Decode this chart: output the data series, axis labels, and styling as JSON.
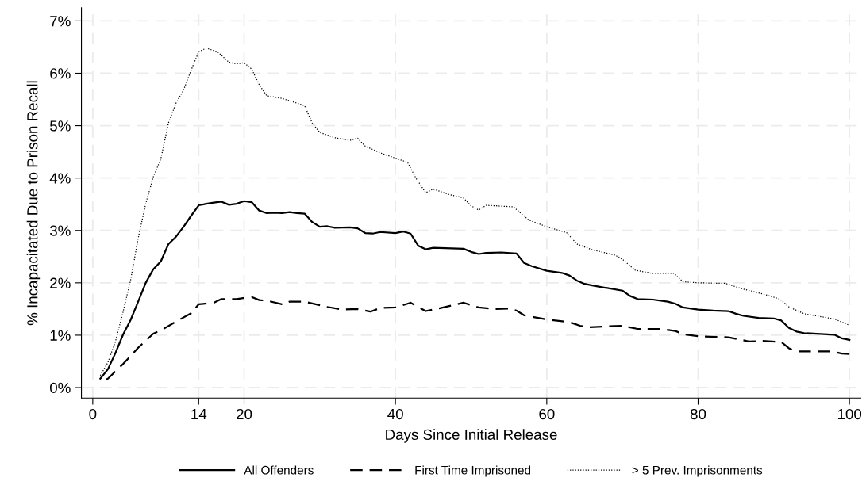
{
  "chart_data": {
    "type": "line",
    "xlabel": "Days Since Initial Release",
    "ylabel": "% Incapacitated Due to Prison Recall",
    "xlim": [
      -1.5,
      101.5
    ],
    "xticks": [
      0,
      14,
      20,
      40,
      60,
      80,
      100
    ],
    "ylim": [
      -0.2,
      7.25
    ],
    "yticks": [
      {
        "value": 0,
        "label": "0%"
      },
      {
        "value": 1,
        "label": "1%"
      },
      {
        "value": 2,
        "label": "2%"
      },
      {
        "value": 3,
        "label": "3%"
      },
      {
        "value": 4,
        "label": "4%"
      },
      {
        "value": 5,
        "label": "5%"
      },
      {
        "value": 6,
        "label": "6%"
      },
      {
        "value": 7,
        "label": "7%"
      }
    ],
    "grid": true,
    "legend": "bottom",
    "marker": "none",
    "series": [
      {
        "name": "All Offenders",
        "color": "#000000",
        "line_style": "solid",
        "x": [
          1,
          2,
          3,
          4,
          5,
          6,
          7,
          8,
          9,
          10,
          11,
          12,
          13,
          14,
          15,
          16,
          17,
          18,
          19,
          20,
          21,
          22,
          23,
          24,
          25,
          26,
          27,
          28,
          29,
          30,
          31,
          32,
          34,
          35,
          36,
          37,
          38,
          40,
          41,
          42,
          43,
          44,
          45,
          49,
          50,
          51,
          52,
          54,
          56,
          57,
          58,
          60,
          62,
          63,
          64,
          65,
          66,
          68,
          70,
          71,
          72,
          74,
          76,
          77,
          78,
          80,
          82,
          84,
          85,
          86,
          88,
          90,
          91,
          92,
          93,
          94,
          98,
          99,
          100
        ],
        "values": [
          0.17,
          0.35,
          0.66,
          1.01,
          1.29,
          1.64,
          2.0,
          2.26,
          2.41,
          2.74,
          2.88,
          3.07,
          3.28,
          3.48,
          3.51,
          3.53,
          3.55,
          3.49,
          3.51,
          3.56,
          3.54,
          3.38,
          3.33,
          3.34,
          3.33,
          3.35,
          3.33,
          3.32,
          3.16,
          3.07,
          3.08,
          3.05,
          3.06,
          3.04,
          2.95,
          2.94,
          2.97,
          2.95,
          2.98,
          2.94,
          2.71,
          2.64,
          2.67,
          2.65,
          2.59,
          2.55,
          2.57,
          2.58,
          2.56,
          2.38,
          2.32,
          2.23,
          2.19,
          2.14,
          2.04,
          1.98,
          1.95,
          1.9,
          1.85,
          1.75,
          1.69,
          1.68,
          1.64,
          1.6,
          1.53,
          1.49,
          1.47,
          1.46,
          1.41,
          1.37,
          1.33,
          1.32,
          1.28,
          1.14,
          1.07,
          1.04,
          1.01,
          0.94,
          0.91
        ]
      },
      {
        "name": "First Time Imprisoned",
        "color": "#000000",
        "line_style": "dashed",
        "x": [
          1,
          2,
          4,
          6,
          8,
          9,
          11,
          13,
          14,
          16,
          17,
          19,
          21,
          22,
          23,
          25,
          26,
          28,
          31,
          33,
          35,
          36.7,
          38,
          40,
          42,
          44,
          46,
          49,
          51,
          53,
          55,
          56,
          57,
          60,
          63,
          64.4,
          65.6,
          68,
          70,
          72,
          75,
          77,
          78,
          80,
          84,
          86.7,
          88.5,
          91,
          92,
          93,
          97.6,
          99,
          100
        ],
        "values": [
          0.1,
          0.17,
          0.45,
          0.76,
          1.03,
          1.09,
          1.26,
          1.42,
          1.59,
          1.62,
          1.69,
          1.69,
          1.73,
          1.67,
          1.66,
          1.59,
          1.64,
          1.64,
          1.54,
          1.49,
          1.5,
          1.45,
          1.52,
          1.53,
          1.62,
          1.46,
          1.52,
          1.62,
          1.53,
          1.5,
          1.51,
          1.47,
          1.38,
          1.3,
          1.25,
          1.18,
          1.15,
          1.17,
          1.18,
          1.12,
          1.12,
          1.08,
          1.02,
          0.98,
          0.96,
          0.88,
          0.89,
          0.87,
          0.75,
          0.69,
          0.69,
          0.65,
          0.64
        ]
      },
      {
        "name": "> 5 Prev. Imprisonments",
        "color": "#000000",
        "line_style": "dotted",
        "x": [
          1,
          2,
          3,
          4,
          5,
          6,
          7,
          8,
          9,
          10,
          11,
          12,
          13,
          14,
          15,
          16.5,
          18,
          19,
          20,
          21,
          22,
          23,
          25,
          27,
          28,
          29,
          30,
          32,
          34,
          35,
          36,
          38,
          40,
          41.6,
          42.7,
          44,
          45,
          47,
          49,
          50,
          51,
          52,
          55.6,
          57.6,
          60,
          62.6,
          64,
          66,
          69,
          70,
          71.7,
          74,
          76.8,
          78,
          80,
          83.6,
          85.7,
          88.5,
          90.8,
          92,
          94,
          98,
          100
        ],
        "values": [
          0.23,
          0.48,
          0.88,
          1.44,
          2.05,
          2.85,
          3.51,
          4.02,
          4.37,
          5.05,
          5.43,
          5.68,
          6.06,
          6.41,
          6.48,
          6.41,
          6.21,
          6.18,
          6.2,
          6.08,
          5.78,
          5.57,
          5.52,
          5.43,
          5.38,
          5.05,
          4.87,
          4.77,
          4.72,
          4.76,
          4.61,
          4.48,
          4.38,
          4.3,
          4.0,
          3.72,
          3.79,
          3.69,
          3.62,
          3.47,
          3.39,
          3.48,
          3.45,
          3.2,
          3.07,
          2.96,
          2.74,
          2.63,
          2.53,
          2.45,
          2.24,
          2.18,
          2.18,
          2.02,
          2.0,
          1.99,
          1.89,
          1.79,
          1.69,
          1.54,
          1.41,
          1.31,
          1.19
        ]
      }
    ]
  }
}
